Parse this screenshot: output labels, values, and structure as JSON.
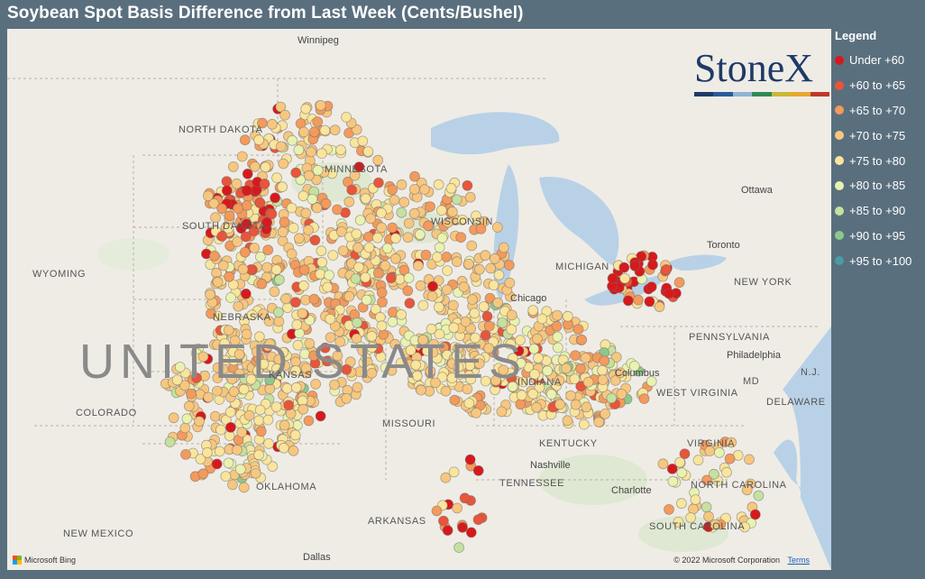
{
  "title": "Soybean Spot Basis Difference from Last Week (Cents/Bushel)",
  "legend": {
    "title": "Legend",
    "items": [
      {
        "label": "Under +60",
        "color": "#d7191c"
      },
      {
        "label": "+60 to +65",
        "color": "#e8553a"
      },
      {
        "label": "+65 to +70",
        "color": "#f39a5c"
      },
      {
        "label": "+70 to +75",
        "color": "#f7c77f"
      },
      {
        "label": "+75 to +80",
        "color": "#f9e59c"
      },
      {
        "label": "+80 to +85",
        "color": "#eaf2b0"
      },
      {
        "label": "+85 to +90",
        "color": "#c5e1a0"
      },
      {
        "label": "+90 to +95",
        "color": "#8cc88c"
      },
      {
        "label": "+95 to +100",
        "color": "#4d9aa5"
      }
    ]
  },
  "logo": {
    "text": "StoneX",
    "bar_colors": [
      "#1f3a68",
      "#2c5a9a",
      "#8fb4d6",
      "#2e8b57",
      "#c8b933",
      "#e8a72c",
      "#c0392b"
    ]
  },
  "map": {
    "country_label": "UNITED STATES",
    "state_labels": [
      "NORTH DAKOTA",
      "SOUTH DAKOTA",
      "MINNESOTA",
      "WISCONSIN",
      "WYOMING",
      "NEBRASKA",
      "COLORADO",
      "MISSOURI",
      "KANSAS",
      "OKLAHOMA",
      "ARKANSAS",
      "NEW MEXICO",
      "KENTUCKY",
      "TENNESSEE",
      "INDIANA",
      "MICHIGAN",
      "PENNSYLVANIA",
      "NEW YORK",
      "WEST VIRGINIA",
      "VIRGINIA",
      "NORTH CAROLINA",
      "SOUTH CAROLINA",
      "MD",
      "DELAWARE",
      "N.J."
    ],
    "city_labels": [
      "Winnipeg",
      "Ottawa",
      "Toronto",
      "Chicago",
      "Columbus",
      "Philadelphia",
      "Nashville",
      "Charlotte",
      "Dallas"
    ],
    "attribution": "Microsoft Bing",
    "copyright": "© 2022 Microsoft Corporation",
    "terms": "Terms"
  }
}
